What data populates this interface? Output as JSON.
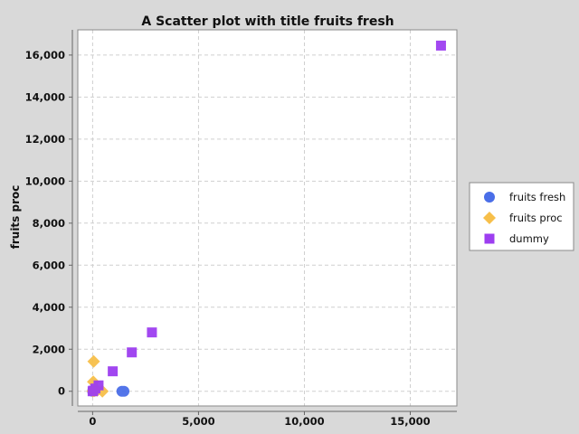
{
  "chart_data": {
    "type": "scatter",
    "title": "A Scatter plot with title fruits fresh",
    "xlabel": "",
    "ylabel": "fruits proc",
    "xlim": [
      -700,
      17200
    ],
    "ylim": [
      -700,
      17200
    ],
    "x_ticks": [
      0,
      5000,
      10000,
      15000
    ],
    "y_ticks": [
      0,
      2000,
      4000,
      6000,
      8000,
      10000,
      12000,
      14000,
      16000
    ],
    "x_tick_labels": [
      "0",
      "5,000",
      "10,000",
      "15,000"
    ],
    "y_tick_labels": [
      "0",
      "2,000",
      "4,000",
      "6,000",
      "8,000",
      "10,000",
      "12,000",
      "14,000",
      "16,000"
    ],
    "grid": true,
    "legend_position": "right",
    "series": [
      {
        "name": "fruits fresh",
        "color": "#4a6ee8",
        "marker": "circle",
        "x": [
          0,
          30,
          60,
          90,
          1380,
          1480
        ],
        "y": [
          0,
          20,
          10,
          40,
          0,
          0
        ]
      },
      {
        "name": "fruits proc",
        "color": "#f7bf4a",
        "marker": "diamond",
        "x": [
          50,
          30,
          10,
          80,
          130,
          460,
          220
        ],
        "y": [
          1420,
          450,
          10,
          20,
          60,
          0,
          40
        ]
      },
      {
        "name": "dummy",
        "color": "#9d3ef0",
        "marker": "square",
        "x": [
          16450,
          2800,
          1850,
          950,
          280,
          130,
          30,
          0
        ],
        "y": [
          16450,
          2800,
          1850,
          950,
          280,
          130,
          30,
          0
        ]
      }
    ]
  }
}
